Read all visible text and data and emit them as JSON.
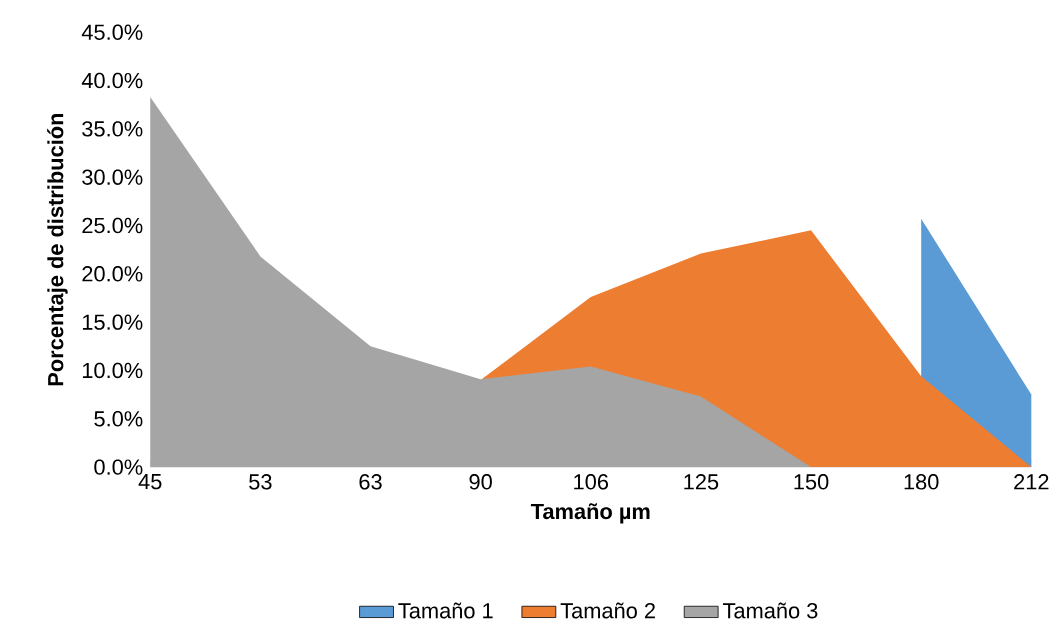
{
  "chart_data": {
    "type": "area",
    "xlabel": "Tamaño µm",
    "ylabel": "Porcentaje de distribución",
    "categories": [
      "45",
      "53",
      "63",
      "90",
      "106",
      "125",
      "150",
      "180",
      "212"
    ],
    "series": [
      {
        "name": "Tamaño 1",
        "color": "#5b9bd5",
        "values": [
          null,
          null,
          null,
          null,
          null,
          null,
          null,
          25.7,
          7.5
        ]
      },
      {
        "name": "Tamaño 2",
        "color": "#ed7d31",
        "values": [
          null,
          null,
          null,
          9.0,
          17.6,
          22.1,
          24.5,
          9.4,
          0
        ]
      },
      {
        "name": "Tamaño 3",
        "color": "#a5a5a5",
        "values": [
          38.3,
          21.8,
          12.5,
          9.1,
          10.4,
          7.3,
          0,
          null,
          null
        ]
      }
    ],
    "ylim": [
      0,
      45
    ],
    "yticks": [
      {
        "value": 0,
        "label": "0.0%"
      },
      {
        "value": 5,
        "label": "5.0%"
      },
      {
        "value": 10,
        "label": "10.0%"
      },
      {
        "value": 15,
        "label": "15.0%"
      },
      {
        "value": 20,
        "label": "20.0%"
      },
      {
        "value": 25,
        "label": "25.0%"
      },
      {
        "value": 30,
        "label": "30.0%"
      },
      {
        "value": 35,
        "label": "35.0%"
      },
      {
        "value": 40,
        "label": "40.0%"
      },
      {
        "value": 45,
        "label": "45.0%"
      }
    ],
    "grid": false,
    "legend": "bottom"
  }
}
